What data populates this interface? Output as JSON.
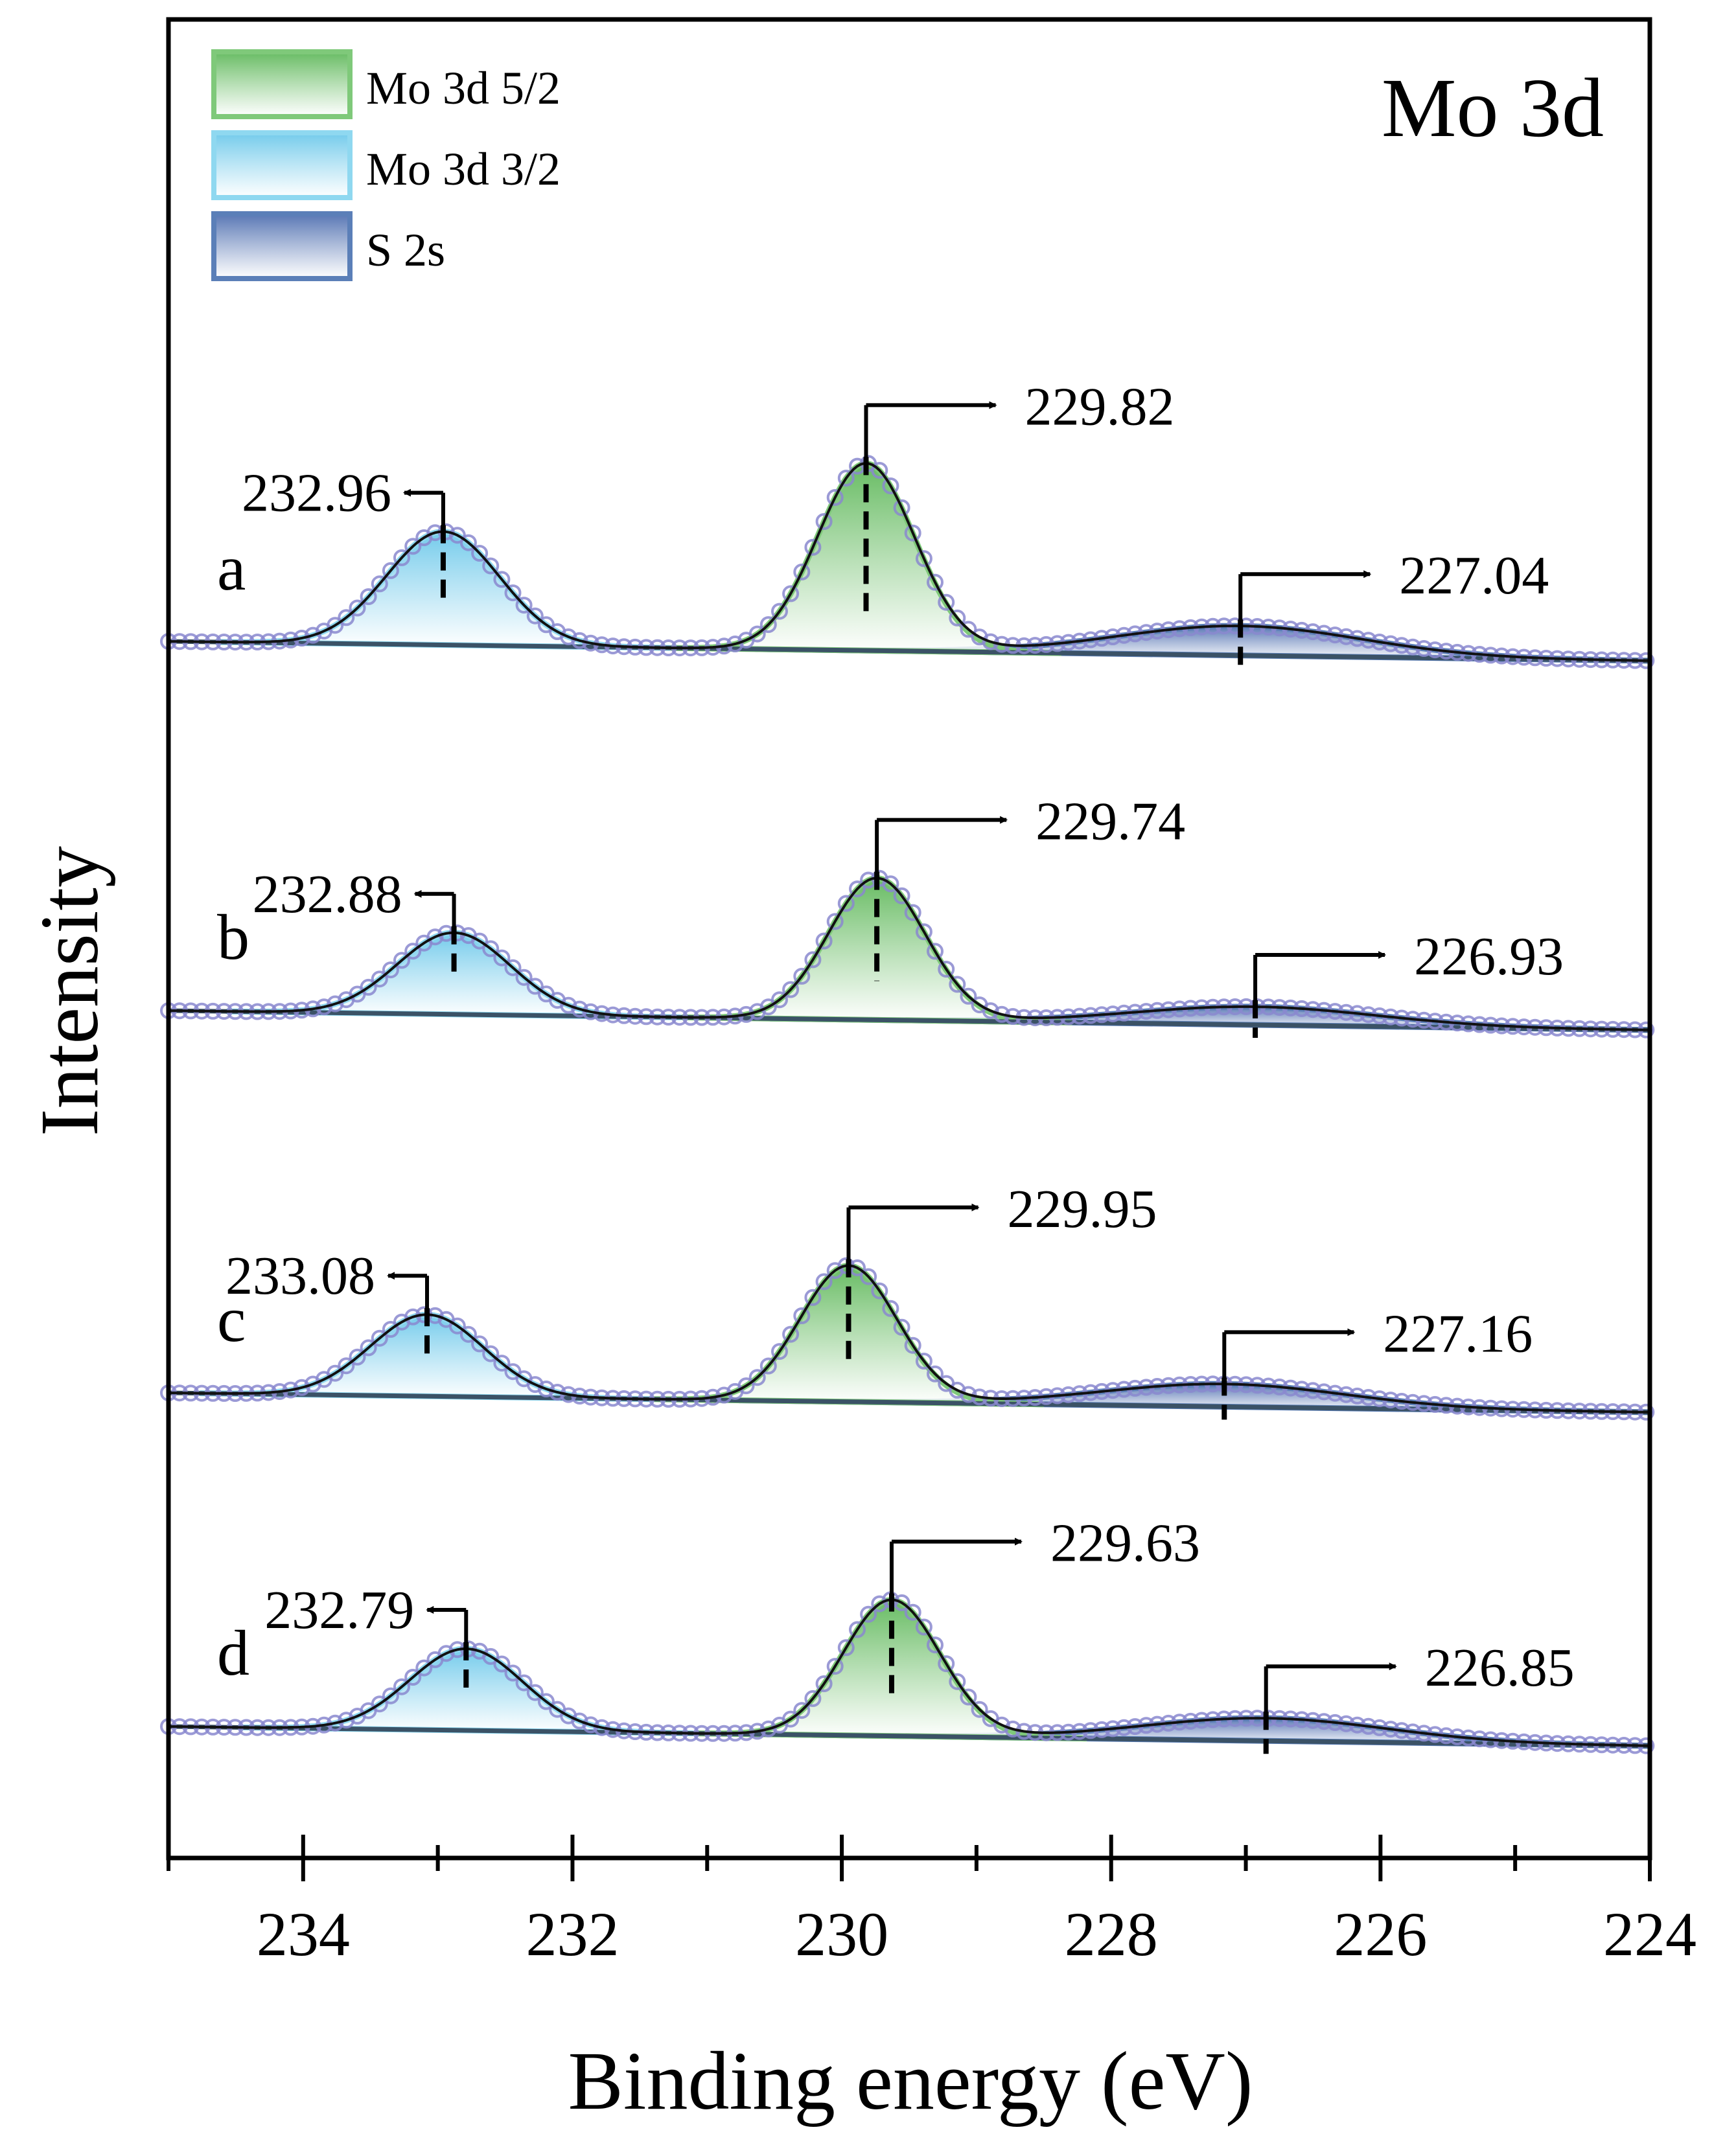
{
  "chart_data": {
    "type": "line",
    "title": "Mo 3d",
    "xlabel": "Binding energy (eV)",
    "ylabel": "Intensity",
    "xlim": [
      235,
      224
    ],
    "xticks": [
      "234",
      "232",
      "230",
      "228",
      "226",
      "224"
    ],
    "xtick_values": [
      234,
      232,
      230,
      228,
      226,
      224
    ],
    "legend_position": "top-left",
    "legend": [
      {
        "label": "Mo 3d 5/2",
        "color": "#7fc97a"
      },
      {
        "label": "Mo 3d 3/2",
        "color": "#8fd8f0"
      },
      {
        "label": "S 2s",
        "color": "#5b7fb8"
      }
    ],
    "colors": {
      "mo52": "#7fc97a",
      "mo32": "#8fd8f0",
      "s2s": "#5b7fb8",
      "data_points": "#8a88cf",
      "baseline": "#3b5266",
      "envelope": "#111111"
    },
    "series": [
      {
        "name": "a",
        "peaks": {
          "mo32": {
            "center": 232.96,
            "label": "232.96",
            "height": 1.0
          },
          "mo52": {
            "center": 229.82,
            "label": "229.82",
            "height": 1.65
          },
          "s2s": {
            "center": 227.04,
            "label": "227.04",
            "height": 0.26
          }
        }
      },
      {
        "name": "b",
        "peaks": {
          "mo32": {
            "center": 232.88,
            "label": "232.88",
            "height": 0.72
          },
          "mo52": {
            "center": 229.74,
            "label": "229.74",
            "height": 1.25
          },
          "s2s": {
            "center": 226.93,
            "label": "226.93",
            "height": 0.16
          }
        }
      },
      {
        "name": "c",
        "peaks": {
          "mo32": {
            "center": 233.08,
            "label": "233.08",
            "height": 0.72
          },
          "mo52": {
            "center": 229.95,
            "label": "229.95",
            "height": 1.2
          },
          "s2s": {
            "center": 227.16,
            "label": "227.16",
            "height": 0.2
          }
        }
      },
      {
        "name": "d",
        "peaks": {
          "mo32": {
            "center": 232.79,
            "label": "232.79",
            "height": 0.72
          },
          "mo52": {
            "center": 229.63,
            "label": "229.63",
            "height": 1.2
          },
          "s2s": {
            "center": 226.85,
            "label": "226.85",
            "height": 0.2
          }
        }
      }
    ]
  }
}
